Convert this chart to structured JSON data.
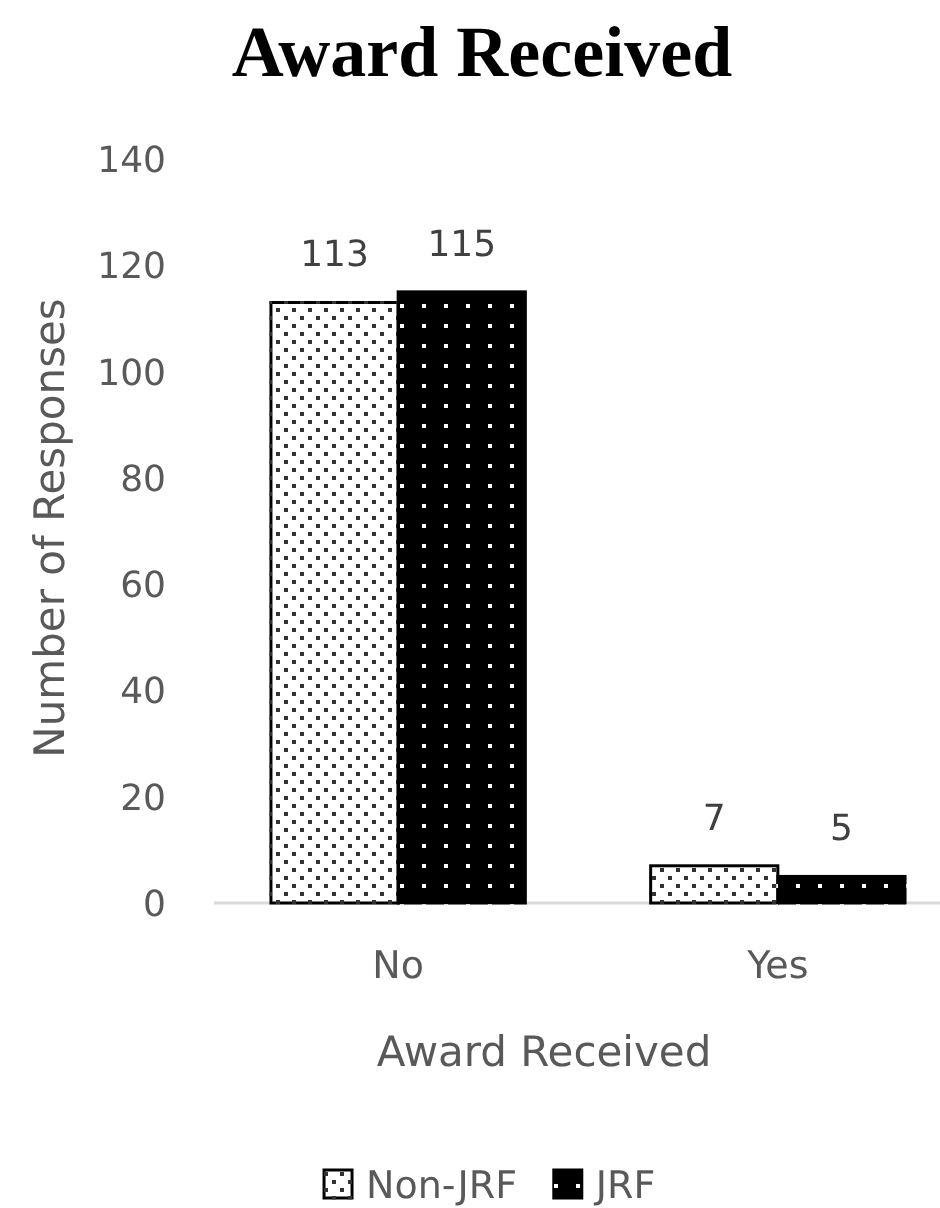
{
  "chart_data": {
    "type": "bar",
    "title": "Award Received",
    "xlabel": "Award Received",
    "ylabel": "Number of Responses",
    "categories": [
      "No",
      "Yes"
    ],
    "series": [
      {
        "name": "Non-JRF",
        "color": "#ffffff",
        "values": [
          113,
          7
        ]
      },
      {
        "name": "JRF",
        "color": "#000000",
        "values": [
          115,
          5
        ]
      }
    ],
    "ylim": [
      0,
      140
    ],
    "yticks": [
      0,
      20,
      40,
      60,
      80,
      100,
      120,
      140
    ],
    "data_labels": true,
    "legend": "bottom"
  }
}
